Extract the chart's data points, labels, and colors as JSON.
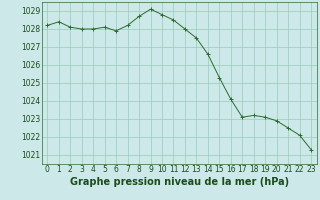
{
  "x": [
    0,
    1,
    2,
    3,
    4,
    5,
    6,
    7,
    8,
    9,
    10,
    11,
    12,
    13,
    14,
    15,
    16,
    17,
    18,
    19,
    20,
    21,
    22,
    23
  ],
  "y": [
    1028.2,
    1028.4,
    1028.1,
    1028.0,
    1028.0,
    1028.1,
    1027.9,
    1028.2,
    1028.7,
    1029.1,
    1028.8,
    1028.5,
    1028.0,
    1027.5,
    1026.6,
    1025.3,
    1024.1,
    1023.1,
    1023.2,
    1023.1,
    1022.9,
    1022.5,
    1022.1,
    1021.3
  ],
  "line_color": "#2d6b2d",
  "marker": "+",
  "marker_size": 3,
  "marker_color": "#2d6b2d",
  "bg_color": "#cce8e8",
  "grid_color": "#99ccbb",
  "title": "Graphe pression niveau de la mer (hPa)",
  "title_fontsize": 7,
  "title_color": "#1a4d1a",
  "xlim": [
    -0.5,
    23.5
  ],
  "ylim": [
    1020.5,
    1029.5
  ],
  "yticks": [
    1021,
    1022,
    1023,
    1024,
    1025,
    1026,
    1027,
    1028,
    1029
  ],
  "xticks": [
    0,
    1,
    2,
    3,
    4,
    5,
    6,
    7,
    8,
    9,
    10,
    11,
    12,
    13,
    14,
    15,
    16,
    17,
    18,
    19,
    20,
    21,
    22,
    23
  ],
  "tick_fontsize": 5.5,
  "tick_color": "#1a4d1a",
  "axis_color": "#2d6b2d"
}
